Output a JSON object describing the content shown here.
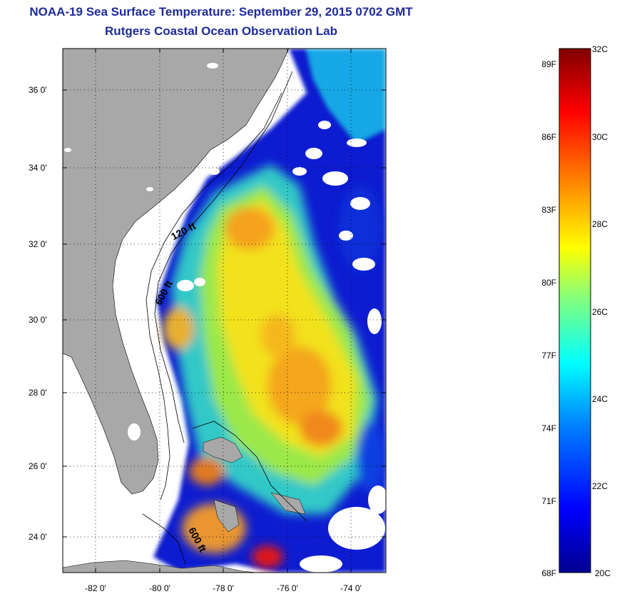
{
  "title": {
    "line1": "NOAA-19 Sea Surface Temperature:  September 29, 2015 0702 GMT",
    "line2": "Rutgers Coastal Ocean Observation Lab"
  },
  "map": {
    "lat_ticks": [
      "36 0'",
      "34 0'",
      "32 0'",
      "30 0'",
      "28 0'",
      "26 0'",
      "24 0'"
    ],
    "lon_ticks": [
      "-82 0'",
      "-80 0'",
      "-78 0'",
      "-76 0'",
      "-74 0'"
    ],
    "isobath_labels": [
      "120 ft",
      "600 ft",
      "600 ft"
    ],
    "colors": {
      "land": "#a8a8a8",
      "ocean_nodata": "#ffffff",
      "cloud": "#ffffff"
    }
  },
  "colorbar": {
    "fahrenheit": [
      "89F",
      "86F",
      "83F",
      "80F",
      "77F",
      "74F",
      "71F",
      "68F"
    ],
    "celsius": [
      "32C",
      "30C",
      "28C",
      "26C",
      "24C",
      "22C",
      "20C"
    ],
    "range_c": [
      20,
      32
    ],
    "colors": [
      "#00008f",
      "#0000ff",
      "#0080ff",
      "#00ffff",
      "#80ff80",
      "#ffff00",
      "#ff8000",
      "#ff0000",
      "#800000"
    ]
  }
}
